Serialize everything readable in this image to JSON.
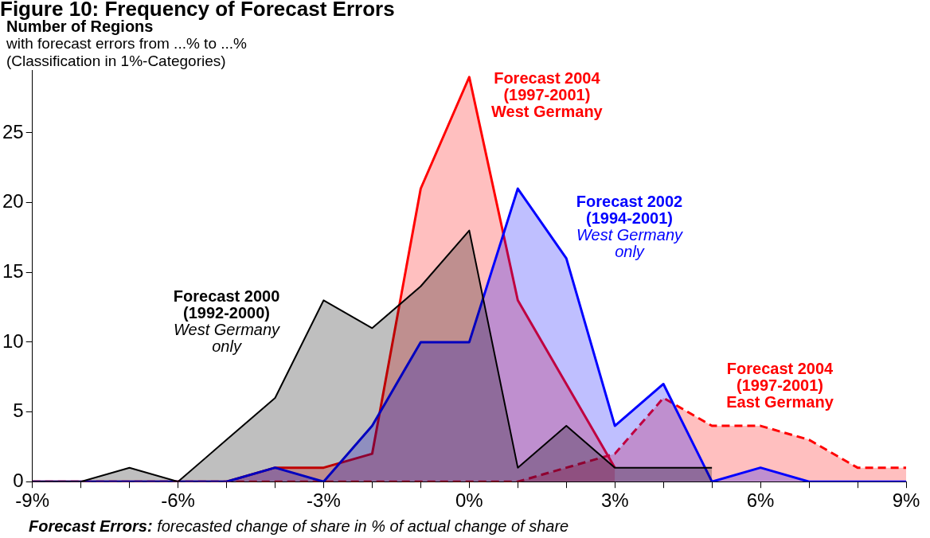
{
  "chart_data": {
    "type": "area",
    "title": "Figure 10:  Frequency of Forecast Errors",
    "ylabel": "Number of Regions",
    "subtitle": "with forecast errors from ...% to ...%\n(Classification in 1%-Categories)",
    "xlabel": "Forecast Errors: forecasted change of share in % of actual change of share",
    "x": [
      -9,
      -8,
      -7,
      -6,
      -5,
      -4,
      -3,
      -2,
      -1,
      0,
      1,
      2,
      3,
      4,
      5,
      6,
      7,
      8,
      9
    ],
    "xlim": [
      -9,
      9
    ],
    "xticks": [
      {
        "value": -9,
        "label": "-9%"
      },
      {
        "value": -8,
        "label": null
      },
      {
        "value": -7,
        "label": null
      },
      {
        "value": -6,
        "label": "-6%"
      },
      {
        "value": -5,
        "label": null
      },
      {
        "value": -4,
        "label": null
      },
      {
        "value": -3,
        "label": "-3%"
      },
      {
        "value": -2,
        "label": null
      },
      {
        "value": -1,
        "label": null
      },
      {
        "value": 0,
        "label": "0%"
      },
      {
        "value": 1,
        "label": null
      },
      {
        "value": 2,
        "label": null
      },
      {
        "value": 3,
        "label": "3%"
      },
      {
        "value": 4,
        "label": null
      },
      {
        "value": 5,
        "label": null
      },
      {
        "value": 6,
        "label": "6%"
      },
      {
        "value": 7,
        "label": null
      },
      {
        "value": 8,
        "label": null
      },
      {
        "value": 9,
        "label": "9%"
      }
    ],
    "ylim": [
      0,
      29.5
    ],
    "yticks": [
      0,
      5,
      10,
      15,
      20,
      25
    ],
    "grid": false,
    "legend": false,
    "marker": "none",
    "series": [
      {
        "name": "Forecast 2004\n(1997-2001)\nEast Germany",
        "color": "#ff0000",
        "line_style": "dashed",
        "values": [
          0,
          0,
          0,
          0,
          0,
          0,
          0,
          0,
          0,
          0,
          0,
          1,
          2,
          6,
          4,
          4,
          3,
          1,
          1
        ]
      },
      {
        "name": "Forecast 2004\n(1997-2001)\nWest Germany",
        "color": "#ff0000",
        "values": [
          0,
          0,
          0,
          0,
          0,
          1,
          1,
          2,
          21,
          29,
          13,
          7,
          1,
          null,
          null,
          null,
          null,
          null,
          null
        ]
      },
      {
        "name": "Forecast 2002\n(1994-2001)\nWest Germany\nonly",
        "color": "#0000ff",
        "values": [
          0,
          0,
          0,
          0,
          0,
          1,
          0,
          4,
          10,
          10,
          21,
          16,
          4,
          7,
          0,
          1,
          0,
          0,
          0
        ]
      },
      {
        "name": "Forecast 2000\n(1992-2000)\nWest Germany\nonly",
        "color": "#000000",
        "values": [
          0,
          0,
          1,
          0,
          3,
          6,
          13,
          11,
          14,
          18,
          1,
          4,
          1,
          1,
          1,
          null,
          null,
          null,
          null
        ]
      }
    ]
  }
}
